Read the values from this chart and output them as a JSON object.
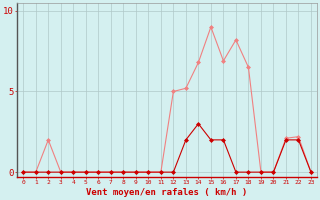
{
  "x": [
    0,
    1,
    2,
    3,
    4,
    5,
    6,
    7,
    8,
    9,
    10,
    11,
    12,
    13,
    14,
    15,
    16,
    17,
    18,
    19,
    20,
    21,
    22,
    23
  ],
  "y_rafales": [
    0.0,
    0.0,
    2.0,
    0.0,
    0.0,
    0.0,
    0.0,
    0.0,
    0.0,
    0.0,
    0.0,
    0.0,
    5.0,
    5.2,
    6.8,
    9.0,
    6.9,
    8.2,
    6.5,
    0.0,
    0.0,
    2.1,
    2.2,
    0.0
  ],
  "y_moyen": [
    0.0,
    0.0,
    0.0,
    0.0,
    0.0,
    0.0,
    0.0,
    0.0,
    0.0,
    0.0,
    0.0,
    0.0,
    0.0,
    2.0,
    3.0,
    2.0,
    2.0,
    0.0,
    0.0,
    0.0,
    0.0,
    2.0,
    2.0,
    0.0
  ],
  "color_rafales": "#f08080",
  "color_moyen": "#cc0000",
  "bg_color": "#d4f0f0",
  "grid_color": "#b0c8c8",
  "xlabel": "Vent moyen/en rafales ( km/h )",
  "yticks": [
    0,
    5,
    10
  ],
  "ylim": [
    -0.3,
    10.5
  ],
  "xlim": [
    -0.5,
    23.5
  ],
  "tick_color": "#cc0000",
  "xlabel_color": "#cc0000",
  "marker_rafales": "D",
  "marker_moyen": "D"
}
